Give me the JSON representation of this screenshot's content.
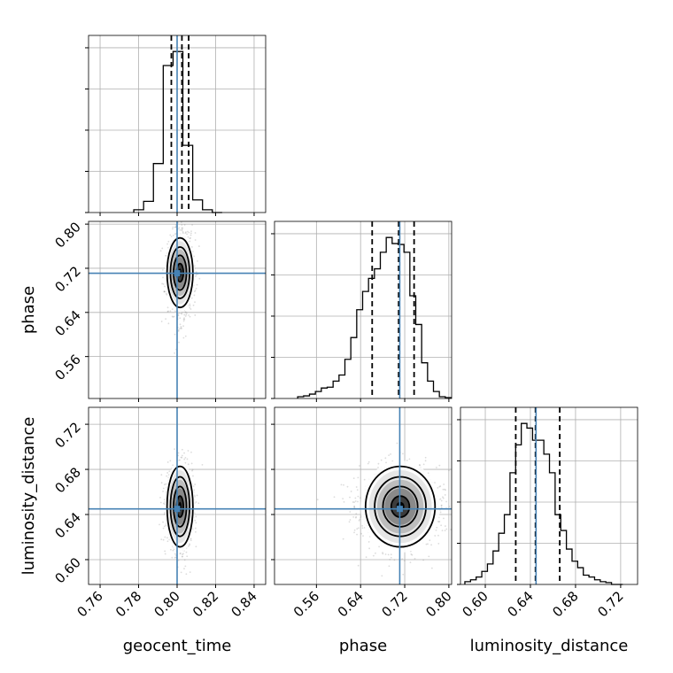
{
  "chart_data": {
    "type": "corner",
    "parameters": [
      "geocent_time",
      "phase",
      "luminosity_distance"
    ],
    "truths": {
      "geocent_time": 0.8,
      "phase": 0.711,
      "luminosity_distance": 0.645
    },
    "colors": {
      "truth": "#4682b4",
      "hist": "#000000",
      "grid": "#b0b0b0",
      "points": "#b3b3b3"
    },
    "grid": true,
    "ranges": {
      "geocent_time": [
        0.754,
        0.846
      ],
      "phase": [
        0.484,
        0.805
      ],
      "luminosity_distance": [
        0.578,
        0.735
      ]
    },
    "ticks": {
      "geocent_time": [
        "0.76",
        "0.78",
        "0.80",
        "0.82",
        "0.84"
      ],
      "phase": [
        "0.56",
        "0.64",
        "0.72",
        "0.80"
      ],
      "luminosity_distance": [
        "0.60",
        "0.64",
        "0.68",
        "0.72"
      ]
    },
    "quantiles": {
      "geocent_time": [
        0.797,
        0.8025,
        0.806
      ],
      "phase": [
        0.661,
        0.709,
        0.737
      ],
      "luminosity_distance": [
        0.627,
        0.6445,
        0.666
      ]
    },
    "marginals": {
      "geocent_time": {
        "edges": [
          0.7775,
          0.7826,
          0.7877,
          0.7928,
          0.7979,
          0.803,
          0.8081,
          0.8132,
          0.8183,
          0.8234
        ],
        "counts": [
          2,
          8,
          35,
          105,
          115,
          48,
          9,
          2,
          0
        ]
      },
      "phase": {
        "edges": [
          0.526,
          0.5367,
          0.5474,
          0.5581,
          0.5688,
          0.5795,
          0.5902,
          0.6009,
          0.6116,
          0.6223,
          0.633,
          0.6437,
          0.6544,
          0.6651,
          0.6758,
          0.6865,
          0.6972,
          0.7079,
          0.7186,
          0.7293,
          0.74,
          0.7507,
          0.7614,
          0.7721,
          0.7828,
          0.7935,
          0.8042
        ],
        "counts": [
          2,
          3,
          5,
          8,
          12,
          13,
          20,
          27,
          45,
          70,
          102,
          123,
          138,
          149,
          168,
          185,
          178,
          177,
          168,
          118,
          85,
          41,
          20,
          8,
          2,
          1
        ]
      },
      "luminosity_distance": {
        "edges": [
          0.5819,
          0.5869,
          0.5919,
          0.5969,
          0.6019,
          0.6069,
          0.6119,
          0.6169,
          0.6219,
          0.6269,
          0.6319,
          0.6369,
          0.6419,
          0.6469,
          0.6519,
          0.6569,
          0.6619,
          0.6669,
          0.6719,
          0.6769,
          0.6819,
          0.6869,
          0.6919,
          0.6969,
          0.7019,
          0.7069,
          0.7119,
          0.7169,
          0.7219
        ],
        "counts": [
          3,
          5,
          8,
          14,
          22,
          36,
          55,
          75,
          120,
          150,
          173,
          168,
          155,
          155,
          140,
          120,
          75,
          58,
          38,
          25,
          18,
          10,
          8,
          5,
          3,
          2,
          0,
          0
        ]
      }
    }
  }
}
